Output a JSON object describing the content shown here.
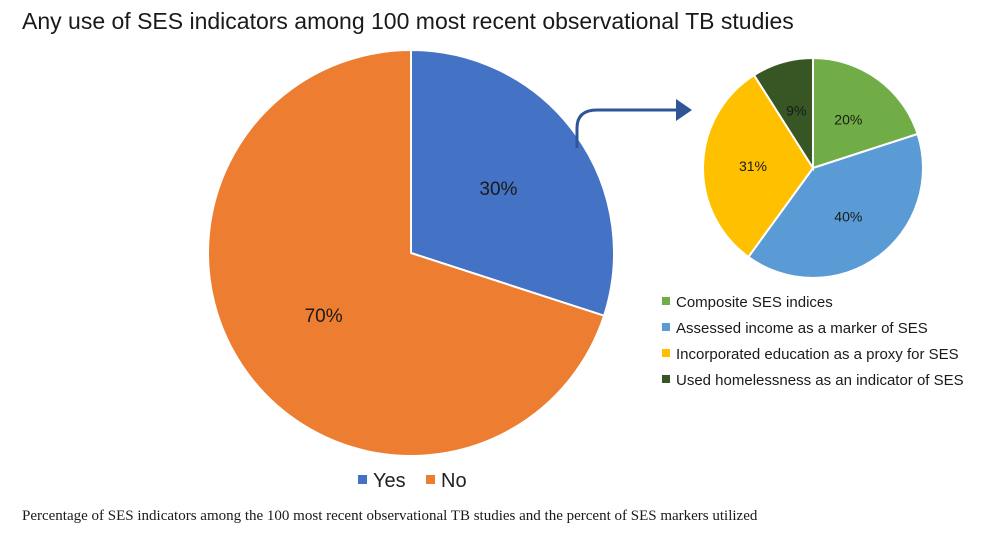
{
  "chart_data": [
    {
      "type": "pie",
      "title": "Any use of SES indicators among 100 most recent observational TB studies",
      "categories": [
        "Yes",
        "No"
      ],
      "values": [
        30,
        70
      ],
      "labels": [
        "30%",
        "70%"
      ],
      "colors": [
        "#4472C4",
        "#ED7D31"
      ],
      "legend_position": "bottom"
    },
    {
      "type": "pie",
      "categories": [
        "Composite SES indices",
        "Assessed income as a marker of SES",
        "Incorporated education as a proxy for SES",
        "Used homelessness as an indicator of SES"
      ],
      "values": [
        20,
        40,
        31,
        9
      ],
      "labels": [
        "20%",
        "40%",
        "31%",
        "9%"
      ],
      "colors": [
        "#70AD47",
        "#5B9BD5",
        "#FFC000",
        "#375623"
      ],
      "legend_position": "bottom-right"
    }
  ],
  "caption": "Percentage of SES indicators among the 100 most recent observational TB studies and the percent of SES markers utilized",
  "colors": {
    "arrow": "#2F5597"
  }
}
